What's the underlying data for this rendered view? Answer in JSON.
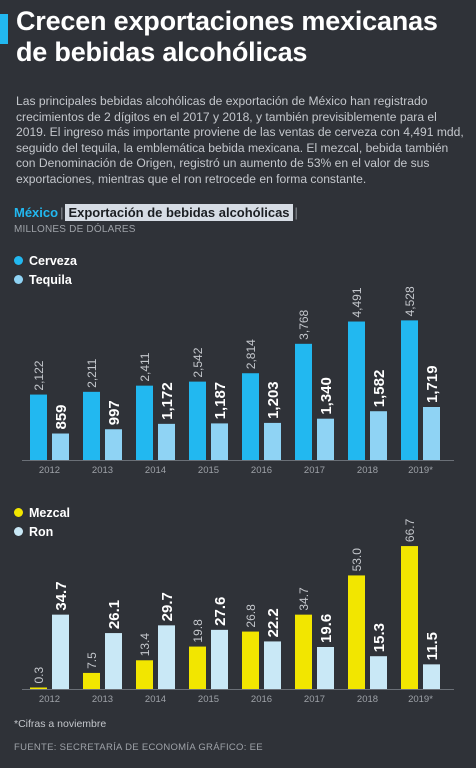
{
  "header": {
    "title": "Crecen exportaciones mexicanas de bebidas alcohólicas",
    "accent_color": "#22b8f0"
  },
  "intro": "Las principales bebidas alcohólicas de exportación de México han registrado crecimientos de 2 dígitos en el 2017 y 2018, y también previsiblemente para el 2019. El ingreso más importante proviene de las ventas de cerveza con 4,491 mdd, seguido del tequila, la emblemática bebida mexicana. El mezcal, bebida también con Denominación de Origen, registró un aumento de 53% en el valor de sus exportaciones, mientras que el ron retrocede en forma constante.",
  "subhead": {
    "country": "México",
    "topic": "Exportación de bebidas alcohólicas"
  },
  "units": "MILLONES DE DÓLARES",
  "footnote": "*Cifras a noviembre",
  "source": "FUENTE: SECRETARÍA DE ECONOMÍA    GRÁFICO: EE",
  "chart_data": [
    {
      "type": "bar",
      "categories": [
        "2012",
        "2013",
        "2014",
        "2015",
        "2016",
        "2017",
        "2018",
        "2019*"
      ],
      "series": [
        {
          "name": "Cerveza",
          "color": "#22b8f0",
          "labels": [
            "2,122",
            "2,211",
            "2,411",
            "2,542",
            "2,814",
            "3,768",
            "4,491",
            "4,528"
          ],
          "values": [
            2122,
            2211,
            2411,
            2542,
            2814,
            3768,
            4491,
            4528
          ]
        },
        {
          "name": "Tequila",
          "color": "#8fd3f4",
          "labels": [
            "859",
            "997",
            "1,172",
            "1,187",
            "1,203",
            "1,340",
            "1,582",
            "1,719"
          ],
          "values": [
            859,
            997,
            1172,
            1187,
            1203,
            1340,
            1582,
            1719
          ]
        }
      ],
      "ylim": [
        0,
        4800
      ]
    },
    {
      "type": "bar",
      "categories": [
        "2012",
        "2013",
        "2014",
        "2015",
        "2016",
        "2017",
        "2018",
        "2019*"
      ],
      "series": [
        {
          "name": "Mezcal",
          "color": "#f2e600",
          "labels": [
            "0.3",
            "7.5",
            "13.4",
            "19.8",
            "26.8",
            "34.7",
            "53.0",
            "66.7"
          ],
          "values": [
            0.3,
            7.5,
            13.4,
            19.8,
            26.8,
            34.7,
            53.0,
            66.7
          ]
        },
        {
          "name": "Ron",
          "color": "#c9e8f6",
          "labels": [
            "34.7",
            "26.1",
            "29.7",
            "27.6",
            "22.2",
            "19.6",
            "15.3",
            "11.5"
          ],
          "values": [
            34.7,
            26.1,
            29.7,
            27.6,
            22.2,
            19.6,
            15.3,
            11.5
          ]
        }
      ],
      "ylim": [
        0,
        70
      ]
    }
  ]
}
